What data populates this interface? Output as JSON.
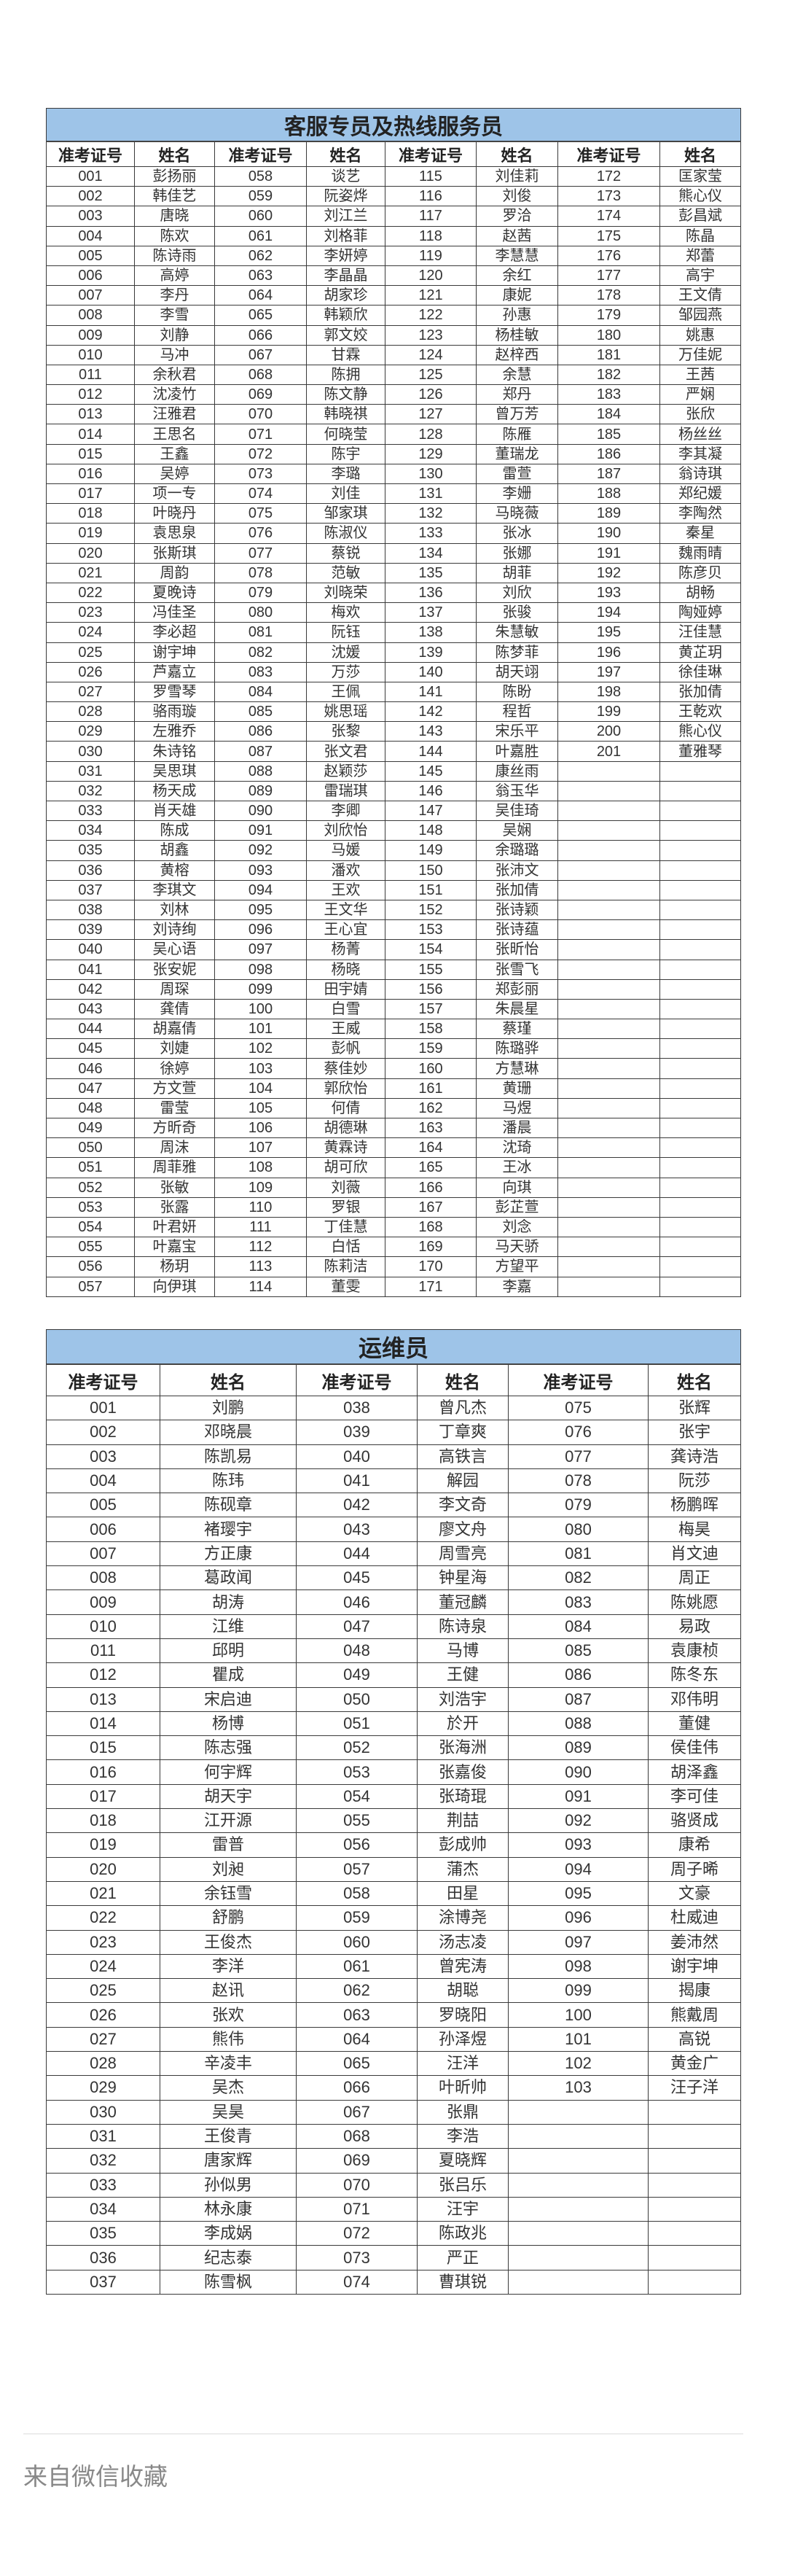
{
  "tables": [
    {
      "title": "客服专员及热线服务员",
      "headers": [
        "准考证号",
        "姓名"
      ],
      "title_bg": "#9ec4e8",
      "groups": [
        [
          [
            "001",
            "彭扬丽"
          ],
          [
            "002",
            "韩佳艺"
          ],
          [
            "003",
            "唐晓"
          ],
          [
            "004",
            "陈欢"
          ],
          [
            "005",
            "陈诗雨"
          ],
          [
            "006",
            "高婷"
          ],
          [
            "007",
            "李丹"
          ],
          [
            "008",
            "李雪"
          ],
          [
            "009",
            "刘静"
          ],
          [
            "010",
            "马冲"
          ],
          [
            "011",
            "余秋君"
          ],
          [
            "012",
            "沈凌竹"
          ],
          [
            "013",
            "汪雅君"
          ],
          [
            "014",
            "王思名"
          ],
          [
            "015",
            "王鑫"
          ],
          [
            "016",
            "吴婷"
          ],
          [
            "017",
            "项一专"
          ],
          [
            "018",
            "叶晓丹"
          ],
          [
            "019",
            "袁思泉"
          ],
          [
            "020",
            "张斯琪"
          ],
          [
            "021",
            "周韵"
          ],
          [
            "022",
            "夏晚诗"
          ],
          [
            "023",
            "冯佳圣"
          ],
          [
            "024",
            "李必超"
          ],
          [
            "025",
            "谢宇坤"
          ],
          [
            "026",
            "芦嘉立"
          ],
          [
            "027",
            "罗雪琴"
          ],
          [
            "028",
            "骆雨璇"
          ],
          [
            "029",
            "左雅乔"
          ],
          [
            "030",
            "朱诗铭"
          ],
          [
            "031",
            "吴思琪"
          ],
          [
            "032",
            "杨天成"
          ],
          [
            "033",
            "肖天雄"
          ],
          [
            "034",
            "陈成"
          ],
          [
            "035",
            "胡鑫"
          ],
          [
            "036",
            "黄榕"
          ],
          [
            "037",
            "李琪文"
          ],
          [
            "038",
            "刘林"
          ],
          [
            "039",
            "刘诗绚"
          ],
          [
            "040",
            "吴心语"
          ],
          [
            "041",
            "张安妮"
          ],
          [
            "042",
            "周琛"
          ],
          [
            "043",
            "龚倩"
          ],
          [
            "044",
            "胡嘉倩"
          ],
          [
            "045",
            "刘婕"
          ],
          [
            "046",
            "徐婷"
          ],
          [
            "047",
            "方文萱"
          ],
          [
            "048",
            "雷莹"
          ],
          [
            "049",
            "方昕奇"
          ],
          [
            "050",
            "周沫"
          ],
          [
            "051",
            "周菲雅"
          ],
          [
            "052",
            "张敏"
          ],
          [
            "053",
            "张露"
          ],
          [
            "054",
            "叶君妍"
          ],
          [
            "055",
            "叶嘉宝"
          ],
          [
            "056",
            "杨玥"
          ],
          [
            "057",
            "向伊琪"
          ]
        ],
        [
          [
            "058",
            "谈艺"
          ],
          [
            "059",
            "阮姿烨"
          ],
          [
            "060",
            "刘江兰"
          ],
          [
            "061",
            "刘格菲"
          ],
          [
            "062",
            "李妍婷"
          ],
          [
            "063",
            "李晶晶"
          ],
          [
            "064",
            "胡家珍"
          ],
          [
            "065",
            "韩颖欣"
          ],
          [
            "066",
            "郭文姣"
          ],
          [
            "067",
            "甘霖"
          ],
          [
            "068",
            "陈拥"
          ],
          [
            "069",
            "陈文静"
          ],
          [
            "070",
            "韩晓祺"
          ],
          [
            "071",
            "何晓莹"
          ],
          [
            "072",
            "陈宇"
          ],
          [
            "073",
            "李璐"
          ],
          [
            "074",
            "刘佳"
          ],
          [
            "075",
            "邹家琪"
          ],
          [
            "076",
            "陈淑仪"
          ],
          [
            "077",
            "蔡锐"
          ],
          [
            "078",
            "范敏"
          ],
          [
            "079",
            "刘晓荣"
          ],
          [
            "080",
            "梅欢"
          ],
          [
            "081",
            "阮钰"
          ],
          [
            "082",
            "沈媛"
          ],
          [
            "083",
            "万莎"
          ],
          [
            "084",
            "王佩"
          ],
          [
            "085",
            "姚思瑶"
          ],
          [
            "086",
            "张黎"
          ],
          [
            "087",
            "张文君"
          ],
          [
            "088",
            "赵颖莎"
          ],
          [
            "089",
            "雷瑞琪"
          ],
          [
            "090",
            "李卿"
          ],
          [
            "091",
            "刘欣怡"
          ],
          [
            "092",
            "马媛"
          ],
          [
            "093",
            "潘欢"
          ],
          [
            "094",
            "王欢"
          ],
          [
            "095",
            "王文华"
          ],
          [
            "096",
            "王心宜"
          ],
          [
            "097",
            "杨菁"
          ],
          [
            "098",
            "杨晓"
          ],
          [
            "099",
            "田宇婧"
          ],
          [
            "100",
            "白雪"
          ],
          [
            "101",
            "王威"
          ],
          [
            "102",
            "彭帆"
          ],
          [
            "103",
            "蔡佳妙"
          ],
          [
            "104",
            "郭欣怡"
          ],
          [
            "105",
            "何倩"
          ],
          [
            "106",
            "胡德琳"
          ],
          [
            "107",
            "黄霖诗"
          ],
          [
            "108",
            "胡可欣"
          ],
          [
            "109",
            "刘薇"
          ],
          [
            "110",
            "罗银"
          ],
          [
            "111",
            "丁佳慧"
          ],
          [
            "112",
            "白恬"
          ],
          [
            "113",
            "陈莉洁"
          ],
          [
            "114",
            "董雯"
          ]
        ],
        [
          [
            "115",
            "刘佳莉"
          ],
          [
            "116",
            "刘俊"
          ],
          [
            "117",
            "罗洽"
          ],
          [
            "118",
            "赵茜"
          ],
          [
            "119",
            "李慧慧"
          ],
          [
            "120",
            "余红"
          ],
          [
            "121",
            "康妮"
          ],
          [
            "122",
            "孙惠"
          ],
          [
            "123",
            "杨桂敏"
          ],
          [
            "124",
            "赵梓西"
          ],
          [
            "125",
            "余慧"
          ],
          [
            "126",
            "郑丹"
          ],
          [
            "127",
            "曾万芳"
          ],
          [
            "128",
            "陈雁"
          ],
          [
            "129",
            "董瑞龙"
          ],
          [
            "130",
            "雷萱"
          ],
          [
            "131",
            "李姗"
          ],
          [
            "132",
            "马晓薇"
          ],
          [
            "133",
            "张冰"
          ],
          [
            "134",
            "张娜"
          ],
          [
            "135",
            "胡菲"
          ],
          [
            "136",
            "刘欣"
          ],
          [
            "137",
            "张骏"
          ],
          [
            "138",
            "朱慧敏"
          ],
          [
            "139",
            "陈梦菲"
          ],
          [
            "140",
            "胡天翊"
          ],
          [
            "141",
            "陈盼"
          ],
          [
            "142",
            "程哲"
          ],
          [
            "143",
            "宋乐平"
          ],
          [
            "144",
            "叶嘉胜"
          ],
          [
            "145",
            "康丝雨"
          ],
          [
            "146",
            "翁玉华"
          ],
          [
            "147",
            "吴佳琦"
          ],
          [
            "148",
            "吴娴"
          ],
          [
            "149",
            "余璐璐"
          ],
          [
            "150",
            "张沛文"
          ],
          [
            "151",
            "张加倩"
          ],
          [
            "152",
            "张诗颖"
          ],
          [
            "153",
            "张诗蕴"
          ],
          [
            "154",
            "张昕怡"
          ],
          [
            "155",
            "张雪飞"
          ],
          [
            "156",
            "郑彭丽"
          ],
          [
            "157",
            "朱晨星"
          ],
          [
            "158",
            "蔡瑾"
          ],
          [
            "159",
            "陈璐骅"
          ],
          [
            "160",
            "方慧琳"
          ],
          [
            "161",
            "黄珊"
          ],
          [
            "162",
            "马煜"
          ],
          [
            "163",
            "潘晨"
          ],
          [
            "164",
            "沈琦"
          ],
          [
            "165",
            "王冰"
          ],
          [
            "166",
            "向琪"
          ],
          [
            "167",
            "彭芷萱"
          ],
          [
            "168",
            "刘念"
          ],
          [
            "169",
            "马天骄"
          ],
          [
            "170",
            "方望平"
          ],
          [
            "171",
            "李嘉"
          ]
        ],
        [
          [
            "172",
            "匡家莹"
          ],
          [
            "173",
            "熊心仪"
          ],
          [
            "174",
            "彭昌斌"
          ],
          [
            "175",
            "陈晶"
          ],
          [
            "176",
            "郑蕾"
          ],
          [
            "177",
            "高宇"
          ],
          [
            "178",
            "王文倩"
          ],
          [
            "179",
            "邹园燕"
          ],
          [
            "180",
            "姚惠"
          ],
          [
            "181",
            "万佳妮"
          ],
          [
            "182",
            "王茜"
          ],
          [
            "183",
            "严娴"
          ],
          [
            "184",
            "张欣"
          ],
          [
            "185",
            "杨丝丝"
          ],
          [
            "186",
            "李其凝"
          ],
          [
            "187",
            "翁诗琪"
          ],
          [
            "188",
            "郑纪媛"
          ],
          [
            "189",
            "李陶然"
          ],
          [
            "190",
            "秦星"
          ],
          [
            "191",
            "魏雨晴"
          ],
          [
            "192",
            "陈彦贝"
          ],
          [
            "193",
            "胡畅"
          ],
          [
            "194",
            "陶娅婷"
          ],
          [
            "195",
            "汪佳慧"
          ],
          [
            "196",
            "黄芷玥"
          ],
          [
            "197",
            "徐佳琳"
          ],
          [
            "198",
            "张加倩"
          ],
          [
            "199",
            "王乾欢"
          ],
          [
            "200",
            "熊心仪"
          ],
          [
            "201",
            "董雅琴"
          ]
        ]
      ]
    },
    {
      "title": "运维员",
      "headers": [
        "准考证号",
        "姓名"
      ],
      "title_bg": "#9ec4e8",
      "groups": [
        [
          [
            "001",
            "刘鹏"
          ],
          [
            "002",
            "邓晓晨"
          ],
          [
            "003",
            "陈凯易"
          ],
          [
            "004",
            "陈玮"
          ],
          [
            "005",
            "陈砚章"
          ],
          [
            "006",
            "褚璎宇"
          ],
          [
            "007",
            "方正康"
          ],
          [
            "008",
            "葛政闻"
          ],
          [
            "009",
            "胡涛"
          ],
          [
            "010",
            "江维"
          ],
          [
            "011",
            "邱明"
          ],
          [
            "012",
            "瞿成"
          ],
          [
            "013",
            "宋启迪"
          ],
          [
            "014",
            "杨博"
          ],
          [
            "015",
            "陈志强"
          ],
          [
            "016",
            "何宇辉"
          ],
          [
            "017",
            "胡天宇"
          ],
          [
            "018",
            "江开源"
          ],
          [
            "019",
            "雷普"
          ],
          [
            "020",
            "刘昶"
          ],
          [
            "021",
            "余钰雪"
          ],
          [
            "022",
            "舒鹏"
          ],
          [
            "023",
            "王俊杰"
          ],
          [
            "024",
            "李洋"
          ],
          [
            "025",
            "赵讯"
          ],
          [
            "026",
            "张欢"
          ],
          [
            "027",
            "熊伟"
          ],
          [
            "028",
            "辛凌丰"
          ],
          [
            "029",
            "吴杰"
          ],
          [
            "030",
            "吴昊"
          ],
          [
            "031",
            "王俊青"
          ],
          [
            "032",
            "唐家辉"
          ],
          [
            "033",
            "孙似男"
          ],
          [
            "034",
            "林永康"
          ],
          [
            "035",
            "李成娲"
          ],
          [
            "036",
            "纪志泰"
          ],
          [
            "037",
            "陈雪枫"
          ]
        ],
        [
          [
            "038",
            "曾凡杰"
          ],
          [
            "039",
            "丁章爽"
          ],
          [
            "040",
            "高铁言"
          ],
          [
            "041",
            "解园"
          ],
          [
            "042",
            "李文奇"
          ],
          [
            "043",
            "廖文舟"
          ],
          [
            "044",
            "周雪亮"
          ],
          [
            "045",
            "钟星海"
          ],
          [
            "046",
            "董冠麟"
          ],
          [
            "047",
            "陈诗泉"
          ],
          [
            "048",
            "马博"
          ],
          [
            "049",
            "王健"
          ],
          [
            "050",
            "刘浩宇"
          ],
          [
            "051",
            "於开"
          ],
          [
            "052",
            "张海洲"
          ],
          [
            "053",
            "张嘉俊"
          ],
          [
            "054",
            "张琦琨"
          ],
          [
            "055",
            "荆喆"
          ],
          [
            "056",
            "彭成帅"
          ],
          [
            "057",
            "蒲杰"
          ],
          [
            "058",
            "田星"
          ],
          [
            "059",
            "涂博尧"
          ],
          [
            "060",
            "汤志凌"
          ],
          [
            "061",
            "曾宪涛"
          ],
          [
            "062",
            "胡聪"
          ],
          [
            "063",
            "罗晓阳"
          ],
          [
            "064",
            "孙泽煜"
          ],
          [
            "065",
            "汪洋"
          ],
          [
            "066",
            "叶昕帅"
          ],
          [
            "067",
            "张鼎"
          ],
          [
            "068",
            "李浩"
          ],
          [
            "069",
            "夏晓辉"
          ],
          [
            "070",
            "张吕乐"
          ],
          [
            "071",
            "汪宇"
          ],
          [
            "072",
            "陈政兆"
          ],
          [
            "073",
            "严正"
          ],
          [
            "074",
            "曹琪锐"
          ]
        ],
        [
          [
            "075",
            "张辉"
          ],
          [
            "076",
            "张宇"
          ],
          [
            "077",
            "龚诗浩"
          ],
          [
            "078",
            "阮莎"
          ],
          [
            "079",
            "杨鹏晖"
          ],
          [
            "080",
            "梅昊"
          ],
          [
            "081",
            "肖文迪"
          ],
          [
            "082",
            "周正"
          ],
          [
            "083",
            "陈姚愿"
          ],
          [
            "084",
            "易政"
          ],
          [
            "085",
            "袁康桢"
          ],
          [
            "086",
            "陈冬东"
          ],
          [
            "087",
            "邓伟明"
          ],
          [
            "088",
            "董健"
          ],
          [
            "089",
            "侯佳伟"
          ],
          [
            "090",
            "胡泽鑫"
          ],
          [
            "091",
            "李可佳"
          ],
          [
            "092",
            "骆贤成"
          ],
          [
            "093",
            "康希"
          ],
          [
            "094",
            "周子晞"
          ],
          [
            "095",
            "文豪"
          ],
          [
            "096",
            "杜威迪"
          ],
          [
            "097",
            "姜沛然"
          ],
          [
            "098",
            "谢宇坤"
          ],
          [
            "099",
            "揭康"
          ],
          [
            "100",
            "熊戴周"
          ],
          [
            "101",
            "高锐"
          ],
          [
            "102",
            "黄金广"
          ],
          [
            "103",
            "汪子洋"
          ]
        ]
      ]
    }
  ],
  "footer": {
    "source": "来自微信收藏"
  }
}
